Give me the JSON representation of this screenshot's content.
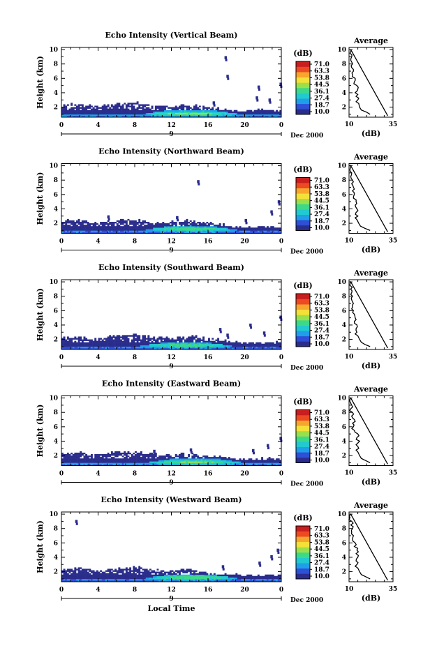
{
  "chart_data": {
    "type": "heatmap",
    "colorbar": {
      "unit": "(dB)",
      "ticks": [
        "71.0",
        "63.3",
        "53.8",
        "44.5",
        "36.1",
        "27.4",
        "18.7",
        "10.0"
      ],
      "range": [
        10.0,
        71.0
      ],
      "colors": [
        "#2b2d8c",
        "#2e4fd6",
        "#1e9fe8",
        "#22c9d0",
        "#3cd98a",
        "#9be04a",
        "#f3e13a",
        "#f7a62d",
        "#ec4a22",
        "#c81e1e"
      ]
    },
    "x_axis": {
      "ticks": [
        "0",
        "4",
        "8",
        "12",
        "16",
        "20",
        "0"
      ],
      "range": [
        0,
        24
      ],
      "day_label": "9",
      "month_year": "Dec 2000",
      "label": "Local Time"
    },
    "y_axis": {
      "label": "Height (km)",
      "ticks": [
        "2",
        "4",
        "6",
        "8",
        "10"
      ],
      "range": [
        0.6,
        10.3
      ]
    },
    "average_panel": {
      "title": "Average",
      "xlabel": "(dB)",
      "x_ticks": [
        "10",
        "35"
      ],
      "xlim": [
        10,
        35
      ],
      "y_ticks": [
        "2",
        "4",
        "6",
        "8",
        "10"
      ]
    },
    "panels": [
      {
        "title": "Echo Intensity (Vertical Beam)",
        "boundary_layer_top_km": [
          [
            0,
            2.3
          ],
          [
            2,
            2.3
          ],
          [
            4,
            2.0
          ],
          [
            6,
            2.4
          ],
          [
            8,
            2.6
          ],
          [
            10,
            2.1
          ],
          [
            12,
            2.0
          ],
          [
            14,
            2.2
          ],
          [
            16,
            1.8
          ],
          [
            18,
            1.5
          ],
          [
            20,
            1.4
          ],
          [
            22,
            1.6
          ],
          [
            24,
            1.5
          ]
        ],
        "peak_echo": {
          "time_h": 14,
          "height_km": 1.0,
          "intensity_db": 40
        },
        "isolated_echoes": [
          [
            17.8,
            9.1
          ],
          [
            18.0,
            6.5
          ],
          [
            21.4,
            5.0
          ],
          [
            23.8,
            5.4
          ],
          [
            21.2,
            3.5
          ],
          [
            22.6,
            3.2
          ],
          [
            16.5,
            2.8
          ]
        ],
        "average_profile": [
          [
            1.0,
            22
          ],
          [
            1.3,
            20
          ],
          [
            1.6,
            17
          ],
          [
            2.0,
            16
          ],
          [
            2.5,
            15.5
          ],
          [
            3.0,
            15
          ],
          [
            3.5,
            14
          ],
          [
            4.0,
            13.5
          ],
          [
            4.5,
            15
          ],
          [
            5.0,
            14.5
          ],
          [
            5.5,
            13
          ],
          [
            6.0,
            13.5
          ],
          [
            6.5,
            12
          ],
          [
            7.0,
            12.5
          ],
          [
            7.5,
            11.5
          ],
          [
            8.0,
            12
          ],
          [
            8.5,
            11
          ],
          [
            9.0,
            11.5
          ],
          [
            9.5,
            10.5
          ],
          [
            10.0,
            11
          ]
        ]
      },
      {
        "title": "Echo Intensity (Northward Beam)",
        "boundary_layer_top_km": [
          [
            0,
            2.2
          ],
          [
            2,
            2.4
          ],
          [
            4,
            1.9
          ],
          [
            6,
            2.3
          ],
          [
            8,
            2.5
          ],
          [
            10,
            2.0
          ],
          [
            12,
            2.1
          ],
          [
            14,
            2.3
          ],
          [
            16,
            2.0
          ],
          [
            18,
            1.6
          ],
          [
            20,
            1.3
          ],
          [
            22,
            1.5
          ],
          [
            24,
            1.4
          ]
        ],
        "peak_echo": {
          "time_h": 14,
          "height_km": 1.1,
          "intensity_db": 38
        },
        "isolated_echoes": [
          [
            14.8,
            8.0
          ],
          [
            22.8,
            3.8
          ],
          [
            23.6,
            5.2
          ],
          [
            20.0,
            2.6
          ],
          [
            12.5,
            3.0
          ],
          [
            5.0,
            3.1
          ]
        ],
        "average_profile": [
          [
            1.0,
            22
          ],
          [
            1.3,
            19
          ],
          [
            1.6,
            16.5
          ],
          [
            2.0,
            15.5
          ],
          [
            2.5,
            14.5
          ],
          [
            3.0,
            15
          ],
          [
            3.5,
            14
          ],
          [
            4.0,
            14.5
          ],
          [
            4.5,
            13.5
          ],
          [
            5.0,
            14
          ],
          [
            5.5,
            12.5
          ],
          [
            6.0,
            13
          ],
          [
            6.5,
            12
          ],
          [
            7.0,
            12.5
          ],
          [
            7.5,
            11.5
          ],
          [
            8.0,
            12
          ],
          [
            8.5,
            11
          ],
          [
            9.0,
            11.5
          ],
          [
            9.5,
            10.5
          ],
          [
            10.0,
            11
          ]
        ]
      },
      {
        "title": "Echo Intensity (Southward Beam)",
        "boundary_layer_top_km": [
          [
            0,
            2.3
          ],
          [
            2,
            2.2
          ],
          [
            4,
            2.0
          ],
          [
            6,
            2.4
          ],
          [
            8,
            2.6
          ],
          [
            10,
            2.2
          ],
          [
            12,
            2.1
          ],
          [
            14,
            2.4
          ],
          [
            16,
            2.0
          ],
          [
            18,
            1.7
          ],
          [
            20,
            1.4
          ],
          [
            22,
            1.5
          ],
          [
            24,
            1.5
          ]
        ],
        "peak_echo": {
          "time_h": 13.5,
          "height_km": 1.1,
          "intensity_db": 37
        },
        "isolated_echoes": [
          [
            23.8,
            5.3
          ],
          [
            20.5,
            4.2
          ],
          [
            22.0,
            3.1
          ],
          [
            18.0,
            2.8
          ],
          [
            17.2,
            3.6
          ]
        ],
        "average_profile": [
          [
            1.0,
            22
          ],
          [
            1.3,
            19
          ],
          [
            1.6,
            17
          ],
          [
            2.0,
            16
          ],
          [
            2.5,
            15
          ],
          [
            3.0,
            14.5
          ],
          [
            3.5,
            14
          ],
          [
            4.0,
            14.5
          ],
          [
            4.5,
            13
          ],
          [
            5.0,
            13.5
          ],
          [
            5.5,
            13
          ],
          [
            6.0,
            12.5
          ],
          [
            6.5,
            12
          ],
          [
            7.0,
            12.5
          ],
          [
            7.5,
            11.5
          ],
          [
            8.0,
            12
          ],
          [
            8.5,
            11.5
          ],
          [
            9.0,
            11
          ],
          [
            9.5,
            10.5
          ],
          [
            10.0,
            11
          ]
        ]
      },
      {
        "title": "Echo Intensity (Eastward Beam)",
        "boundary_layer_top_km": [
          [
            0,
            2.4
          ],
          [
            2,
            2.3
          ],
          [
            4,
            2.0
          ],
          [
            6,
            2.5
          ],
          [
            8,
            2.4
          ],
          [
            10,
            2.1
          ],
          [
            12,
            2.0
          ],
          [
            14,
            2.2
          ],
          [
            16,
            1.9
          ],
          [
            18,
            1.6
          ],
          [
            20,
            1.3
          ],
          [
            22,
            1.5
          ],
          [
            24,
            1.4
          ]
        ],
        "peak_echo": {
          "time_h": 14.5,
          "height_km": 1.0,
          "intensity_db": 39
        },
        "isolated_echoes": [
          [
            23.8,
            4.6
          ],
          [
            22.4,
            3.6
          ],
          [
            20.8,
            2.9
          ],
          [
            14.0,
            3.0
          ],
          [
            10.0,
            2.8
          ]
        ],
        "average_profile": [
          [
            1.0,
            22
          ],
          [
            1.3,
            19.5
          ],
          [
            1.6,
            17
          ],
          [
            2.0,
            16
          ],
          [
            2.5,
            15
          ],
          [
            3.0,
            15.5
          ],
          [
            3.5,
            14
          ],
          [
            4.0,
            16
          ],
          [
            4.5,
            14.5
          ],
          [
            5.0,
            15
          ],
          [
            5.5,
            13
          ],
          [
            6.0,
            12.5
          ],
          [
            6.5,
            12
          ],
          [
            7.0,
            13
          ],
          [
            7.5,
            11.5
          ],
          [
            8.0,
            12
          ],
          [
            8.5,
            11
          ],
          [
            9.0,
            11.5
          ],
          [
            9.5,
            10.5
          ],
          [
            10.0,
            11
          ]
        ]
      },
      {
        "title": "Echo Intensity (Westward Beam)",
        "boundary_layer_top_km": [
          [
            0,
            2.2
          ],
          [
            2,
            2.4
          ],
          [
            4,
            2.0
          ],
          [
            6,
            2.3
          ],
          [
            8,
            2.6
          ],
          [
            10,
            2.2
          ],
          [
            12,
            2.0
          ],
          [
            14,
            2.3
          ],
          [
            16,
            1.9
          ],
          [
            18,
            1.6
          ],
          [
            20,
            1.4
          ],
          [
            22,
            1.5
          ],
          [
            24,
            1.4
          ]
        ],
        "peak_echo": {
          "time_h": 14,
          "height_km": 1.1,
          "intensity_db": 38
        },
        "isolated_echoes": [
          [
            1.5,
            9.2
          ],
          [
            23.5,
            5.2
          ],
          [
            22.8,
            4.3
          ],
          [
            21.5,
            3.4
          ],
          [
            17.5,
            2.9
          ]
        ],
        "average_profile": [
          [
            1.0,
            22
          ],
          [
            1.3,
            19.5
          ],
          [
            1.6,
            17
          ],
          [
            2.0,
            16
          ],
          [
            2.5,
            15
          ],
          [
            3.0,
            14.5
          ],
          [
            3.5,
            14
          ],
          [
            4.0,
            15
          ],
          [
            4.5,
            14
          ],
          [
            5.0,
            14.5
          ],
          [
            5.5,
            13
          ],
          [
            6.0,
            13.5
          ],
          [
            6.5,
            12
          ],
          [
            7.0,
            12.5
          ],
          [
            7.5,
            11.5
          ],
          [
            8.0,
            12
          ],
          [
            8.5,
            11
          ],
          [
            9.0,
            11.5
          ],
          [
            9.5,
            10.5
          ],
          [
            10.0,
            11
          ]
        ]
      }
    ]
  }
}
